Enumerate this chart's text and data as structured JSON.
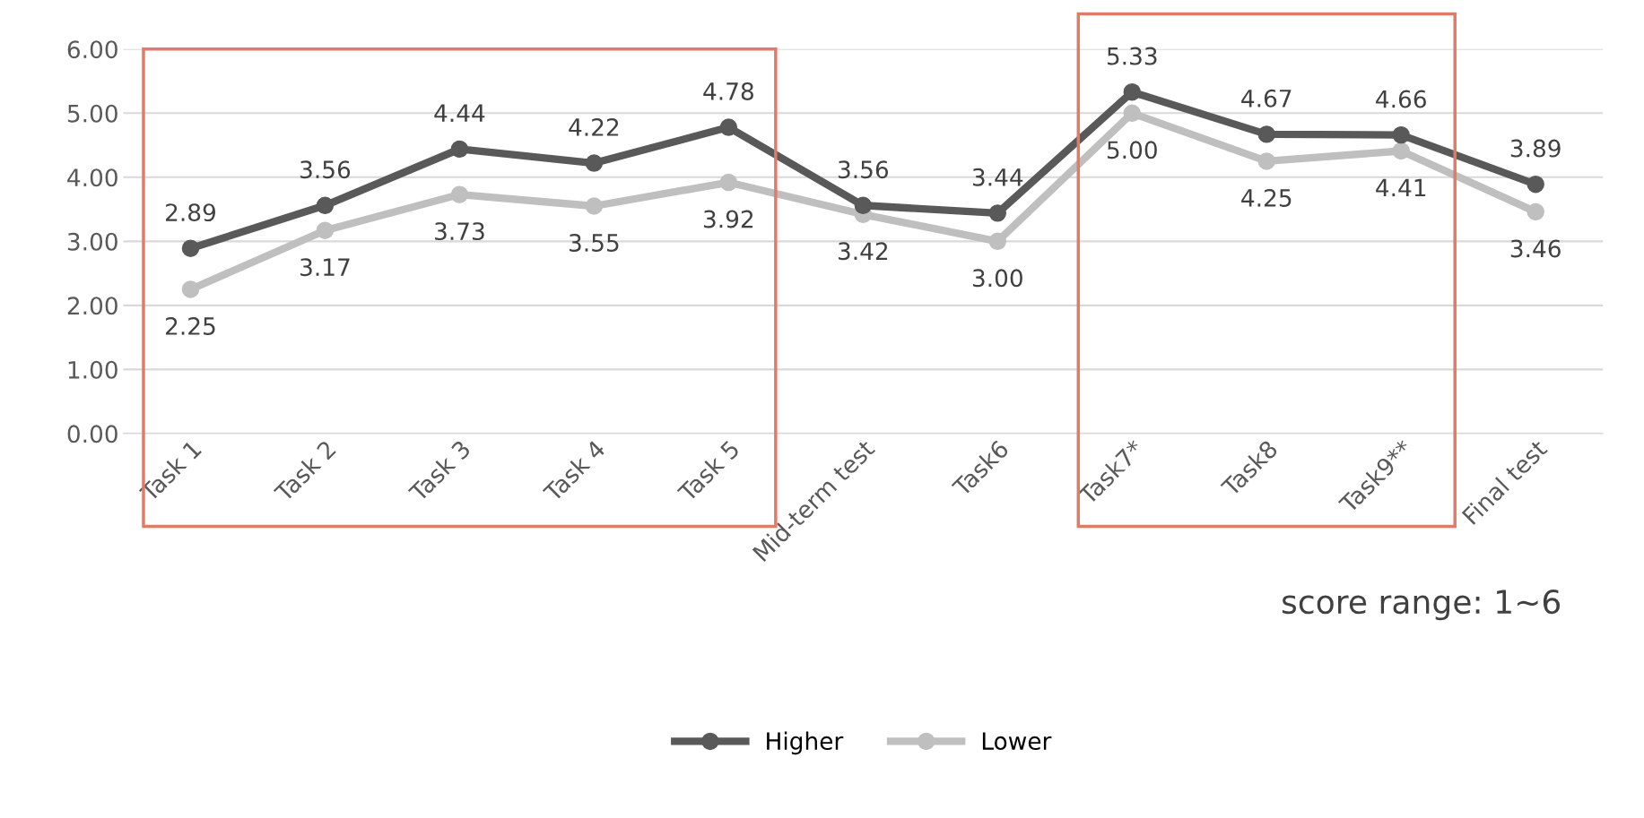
{
  "chart_data": {
    "type": "line",
    "categories": [
      "Task 1",
      "Task 2",
      "Task 3",
      "Task 4",
      "Task 5",
      "Mid-term test",
      "Task6",
      "Task7*",
      "Task8",
      "Task9**",
      "Final test"
    ],
    "series": [
      {
        "name": "Higher",
        "color": "#595959",
        "values": [
          2.89,
          3.56,
          4.44,
          4.22,
          4.78,
          3.56,
          3.44,
          5.33,
          4.67,
          4.66,
          3.89
        ],
        "value_labels": [
          "2.89",
          "3.56",
          "4.44",
          "4.22",
          "4.78",
          "3.56",
          "3.44",
          "5.33",
          "4.67",
          "4.66",
          "3.89"
        ]
      },
      {
        "name": "Lower",
        "color": "#bfbfbf",
        "values": [
          2.25,
          3.17,
          3.73,
          3.55,
          3.92,
          3.42,
          3.0,
          5.0,
          4.25,
          4.41,
          3.46
        ],
        "value_labels": [
          "2.25",
          "3.17",
          "3.73",
          "3.55",
          "3.92",
          "3.42",
          "3.00",
          "5.00",
          "4.25",
          "4.41",
          "3.46"
        ]
      }
    ],
    "ylim": [
      0,
      6
    ],
    "yticks": [
      {
        "value": 0,
        "label": "0.00"
      },
      {
        "value": 1,
        "label": "1.00"
      },
      {
        "value": 2,
        "label": "2.00"
      },
      {
        "value": 3,
        "label": "3.00"
      },
      {
        "value": 4,
        "label": "4.00"
      },
      {
        "value": 5,
        "label": "5.00"
      },
      {
        "value": 6,
        "label": "6.00"
      }
    ],
    "grid": "y",
    "legend": "bottom",
    "marker": "circle",
    "line_style": "solid",
    "annotations": [
      "score range: 1~6"
    ]
  }
}
